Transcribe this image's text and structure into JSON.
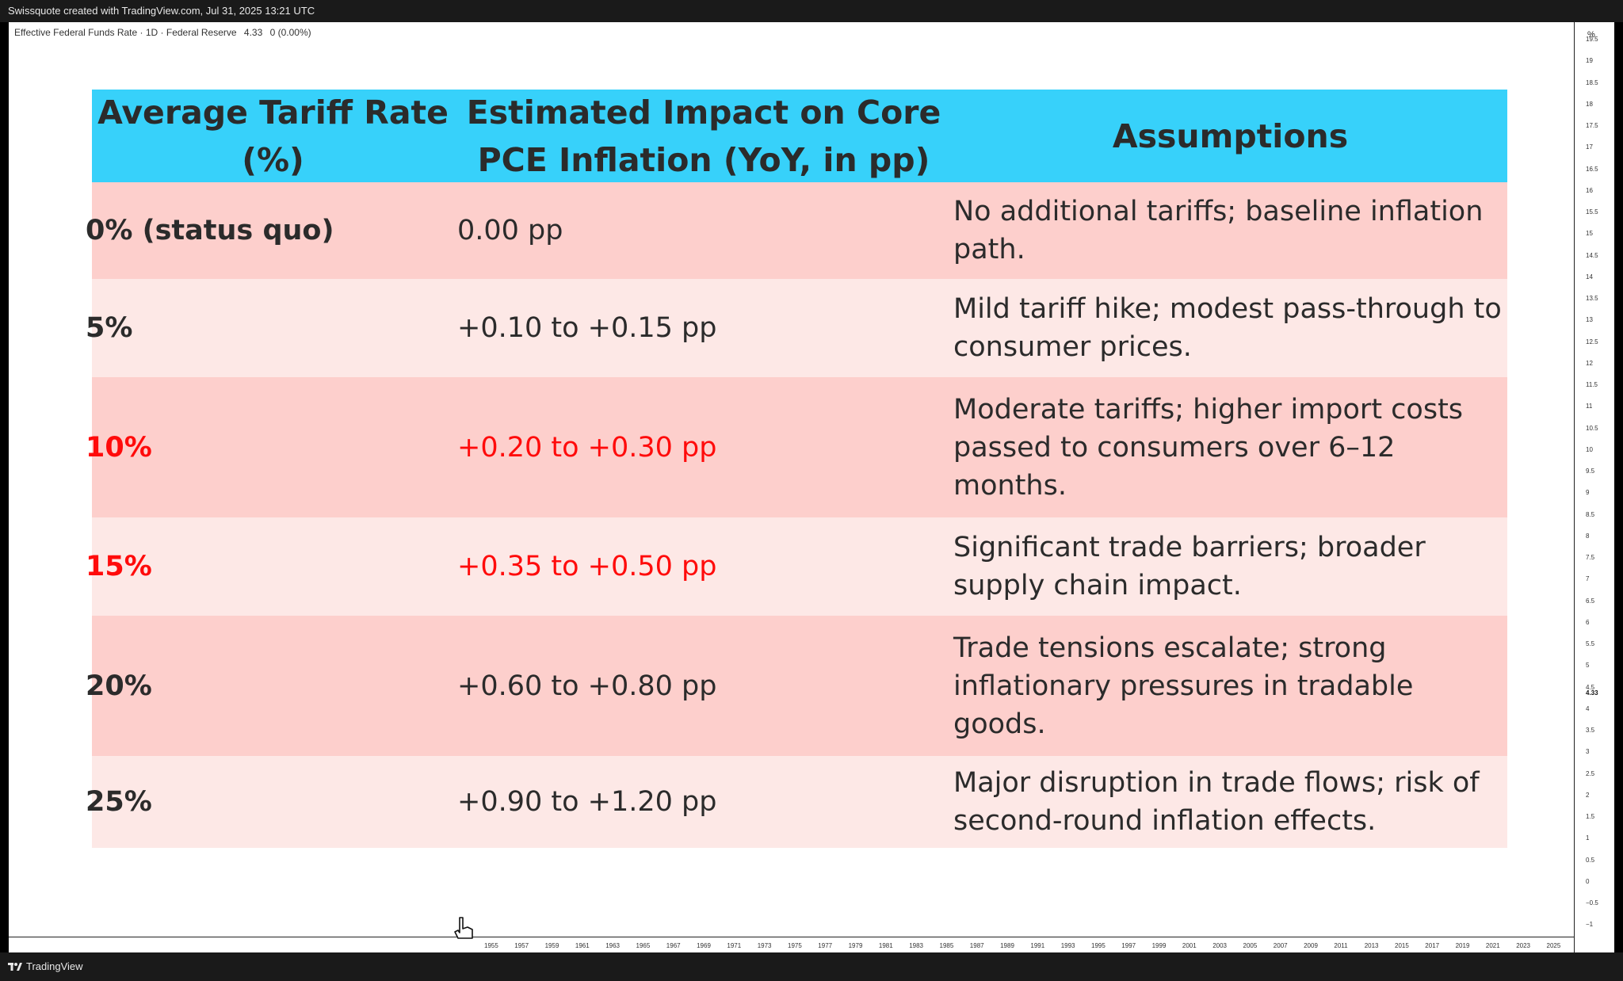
{
  "topbar": {
    "text": "Swissquote created with TradingView.com, Jul 31, 2025 13:21 UTC"
  },
  "symbol": {
    "name": "Effective Federal Funds Rate · 1D · Federal Reserve",
    "price": "4.33",
    "change": "0 (0.00%)"
  },
  "table": {
    "headers": [
      "Average Tariff Rate (%)",
      "Estimated Impact on Core PCE Inflation (YoY, in pp)",
      "Assumptions"
    ],
    "rows": [
      {
        "rate": "0% (status quo)",
        "impact": "0.00 pp",
        "assumption": "No additional tariffs; baseline inflation path.",
        "highlight": false
      },
      {
        "rate": "5%",
        "impact": "+0.10 to +0.15 pp",
        "assumption": "Mild tariff hike; modest pass-through to consumer prices.",
        "highlight": false
      },
      {
        "rate": "10%",
        "impact": "+0.20 to +0.30 pp",
        "assumption": "Moderate tariffs; higher import costs passed to consumers over 6–12 months.",
        "highlight": true
      },
      {
        "rate": "15%",
        "impact": "+0.35 to +0.50 pp",
        "assumption": "Significant trade barriers; broader supply chain impact.",
        "highlight": true
      },
      {
        "rate": "20%",
        "impact": "+0.60 to +0.80 pp",
        "assumption": "Trade tensions escalate; strong inflationary pressures in tradable goods.",
        "highlight": false
      },
      {
        "rate": "25%",
        "impact": "+0.90 to +1.20 pp",
        "assumption": "Major disruption in trade flows; risk of second-round inflation effects.",
        "highlight": false
      }
    ]
  },
  "price_axis": {
    "unit": "%",
    "labels": [
      "19.5",
      "19",
      "18.5",
      "18",
      "17.5",
      "17",
      "16.5",
      "16",
      "15.5",
      "15",
      "14.5",
      "14",
      "13.5",
      "13",
      "12.5",
      "12",
      "11.5",
      "11",
      "10.5",
      "10",
      "9.5",
      "9",
      "8.5",
      "8",
      "7.5",
      "7",
      "6.5",
      "6",
      "5.5",
      "5",
      "4.5",
      "4",
      "3.5",
      "3",
      "2.5",
      "2",
      "1.5",
      "1",
      "0.5",
      "0",
      "−0.5",
      "−1"
    ],
    "current": "4.33"
  },
  "time_axis": {
    "labels": [
      "1955",
      "1957",
      "1959",
      "1961",
      "1963",
      "1965",
      "1967",
      "1969",
      "1971",
      "1973",
      "1975",
      "1977",
      "1979",
      "1981",
      "1983",
      "1985",
      "1987",
      "1989",
      "1991",
      "1993",
      "1995",
      "1997",
      "1999",
      "2001",
      "2003",
      "2005",
      "2007",
      "2009",
      "2011",
      "2013",
      "2015",
      "2017",
      "2019",
      "2021",
      "2023",
      "2025"
    ]
  },
  "footer": {
    "brand": "TradingView"
  },
  "colors": {
    "header": "#37d1fa",
    "row_dark": "#fdcfcc",
    "row_light": "#fde8e6",
    "highlight_text": "#ff0b0b"
  }
}
